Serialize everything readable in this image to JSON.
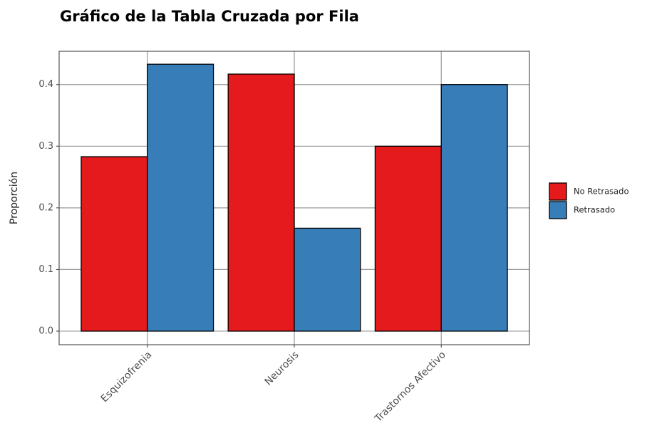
{
  "chart_data": {
    "type": "bar",
    "title": "Gráfico de la Tabla Cruzada por Fila",
    "y_label": "Proporción",
    "categories": [
      "Esquizofrenia",
      "Neurosis",
      "Trastornos Afectivo"
    ],
    "series": [
      {
        "name": "No Retrasado",
        "color": "#e41a1c",
        "values": [
          0.283,
          0.417,
          0.3
        ]
      },
      {
        "name": "Retrasado",
        "color": "#377eb8",
        "values": [
          0.433,
          0.167,
          0.4
        ]
      }
    ],
    "ylim": [
      -0.022,
      0.454
    ],
    "yticks": [
      0.0,
      0.1,
      0.2,
      0.3,
      0.4
    ],
    "grid": true,
    "legend": "right"
  }
}
